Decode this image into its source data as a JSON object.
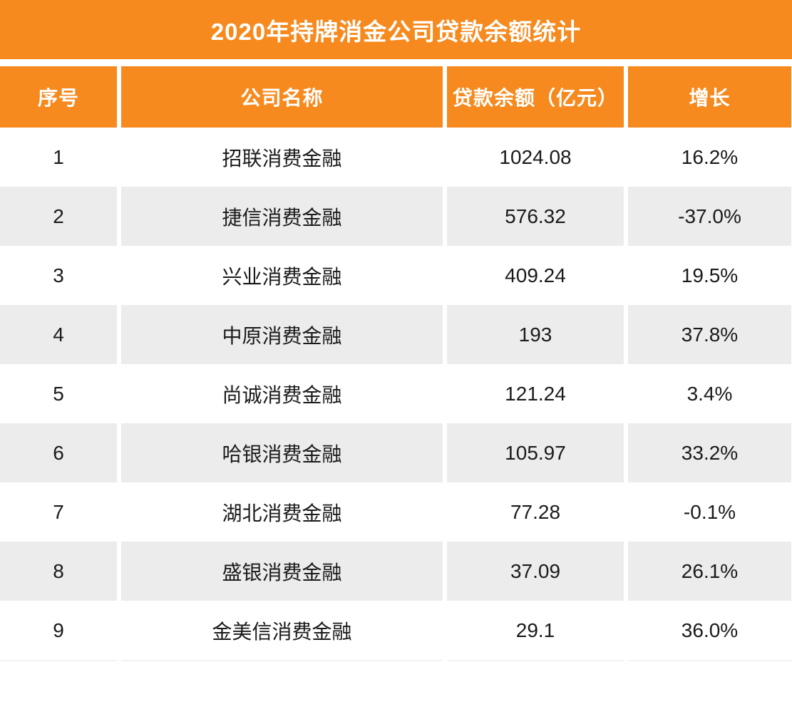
{
  "title": "2020年持牌消金公司贷款余额统计",
  "colors": {
    "accent": "#F68A1E",
    "row_alt": "#ECECEC",
    "header_text": "#FFFFFF",
    "body_text": "#1A1A1A"
  },
  "table": {
    "columns": [
      "序号",
      "公司名称",
      "贷款余额（亿元）",
      "增长"
    ],
    "rows": [
      {
        "no": "1",
        "company": "招联消费金融",
        "balance": "1024.08",
        "growth": "16.2%"
      },
      {
        "no": "2",
        "company": "捷信消费金融",
        "balance": "576.32",
        "growth": "-37.0%"
      },
      {
        "no": "3",
        "company": "兴业消费金融",
        "balance": "409.24",
        "growth": "19.5%"
      },
      {
        "no": "4",
        "company": "中原消费金融",
        "balance": "193",
        "growth": "37.8%"
      },
      {
        "no": "5",
        "company": "尚诚消费金融",
        "balance": "121.24",
        "growth": "3.4%"
      },
      {
        "no": "6",
        "company": "哈银消费金融",
        "balance": "105.97",
        "growth": "33.2%"
      },
      {
        "no": "7",
        "company": "湖北消费金融",
        "balance": "77.28",
        "growth": "-0.1%"
      },
      {
        "no": "8",
        "company": "盛银消费金融",
        "balance": "37.09",
        "growth": "26.1%"
      },
      {
        "no": "9",
        "company": "金美信消费金融",
        "balance": "29.1",
        "growth": "36.0%"
      }
    ]
  },
  "chart_data": {
    "type": "table",
    "title": "2020年持牌消金公司贷款余额统计",
    "columns": [
      "序号",
      "公司名称",
      "贷款余额（亿元）",
      "增长"
    ],
    "categories": [
      "招联消费金融",
      "捷信消费金融",
      "兴业消费金融",
      "中原消费金融",
      "尚诚消费金融",
      "哈银消费金融",
      "湖北消费金融",
      "盛银消费金融",
      "金美信消费金融"
    ],
    "series": [
      {
        "name": "贷款余额（亿元）",
        "values": [
          1024.08,
          576.32,
          409.24,
          193,
          121.24,
          105.97,
          77.28,
          37.09,
          29.1
        ]
      },
      {
        "name": "增长（%）",
        "values": [
          16.2,
          -37.0,
          19.5,
          37.8,
          3.4,
          33.2,
          -0.1,
          26.1,
          36.0
        ]
      }
    ]
  }
}
